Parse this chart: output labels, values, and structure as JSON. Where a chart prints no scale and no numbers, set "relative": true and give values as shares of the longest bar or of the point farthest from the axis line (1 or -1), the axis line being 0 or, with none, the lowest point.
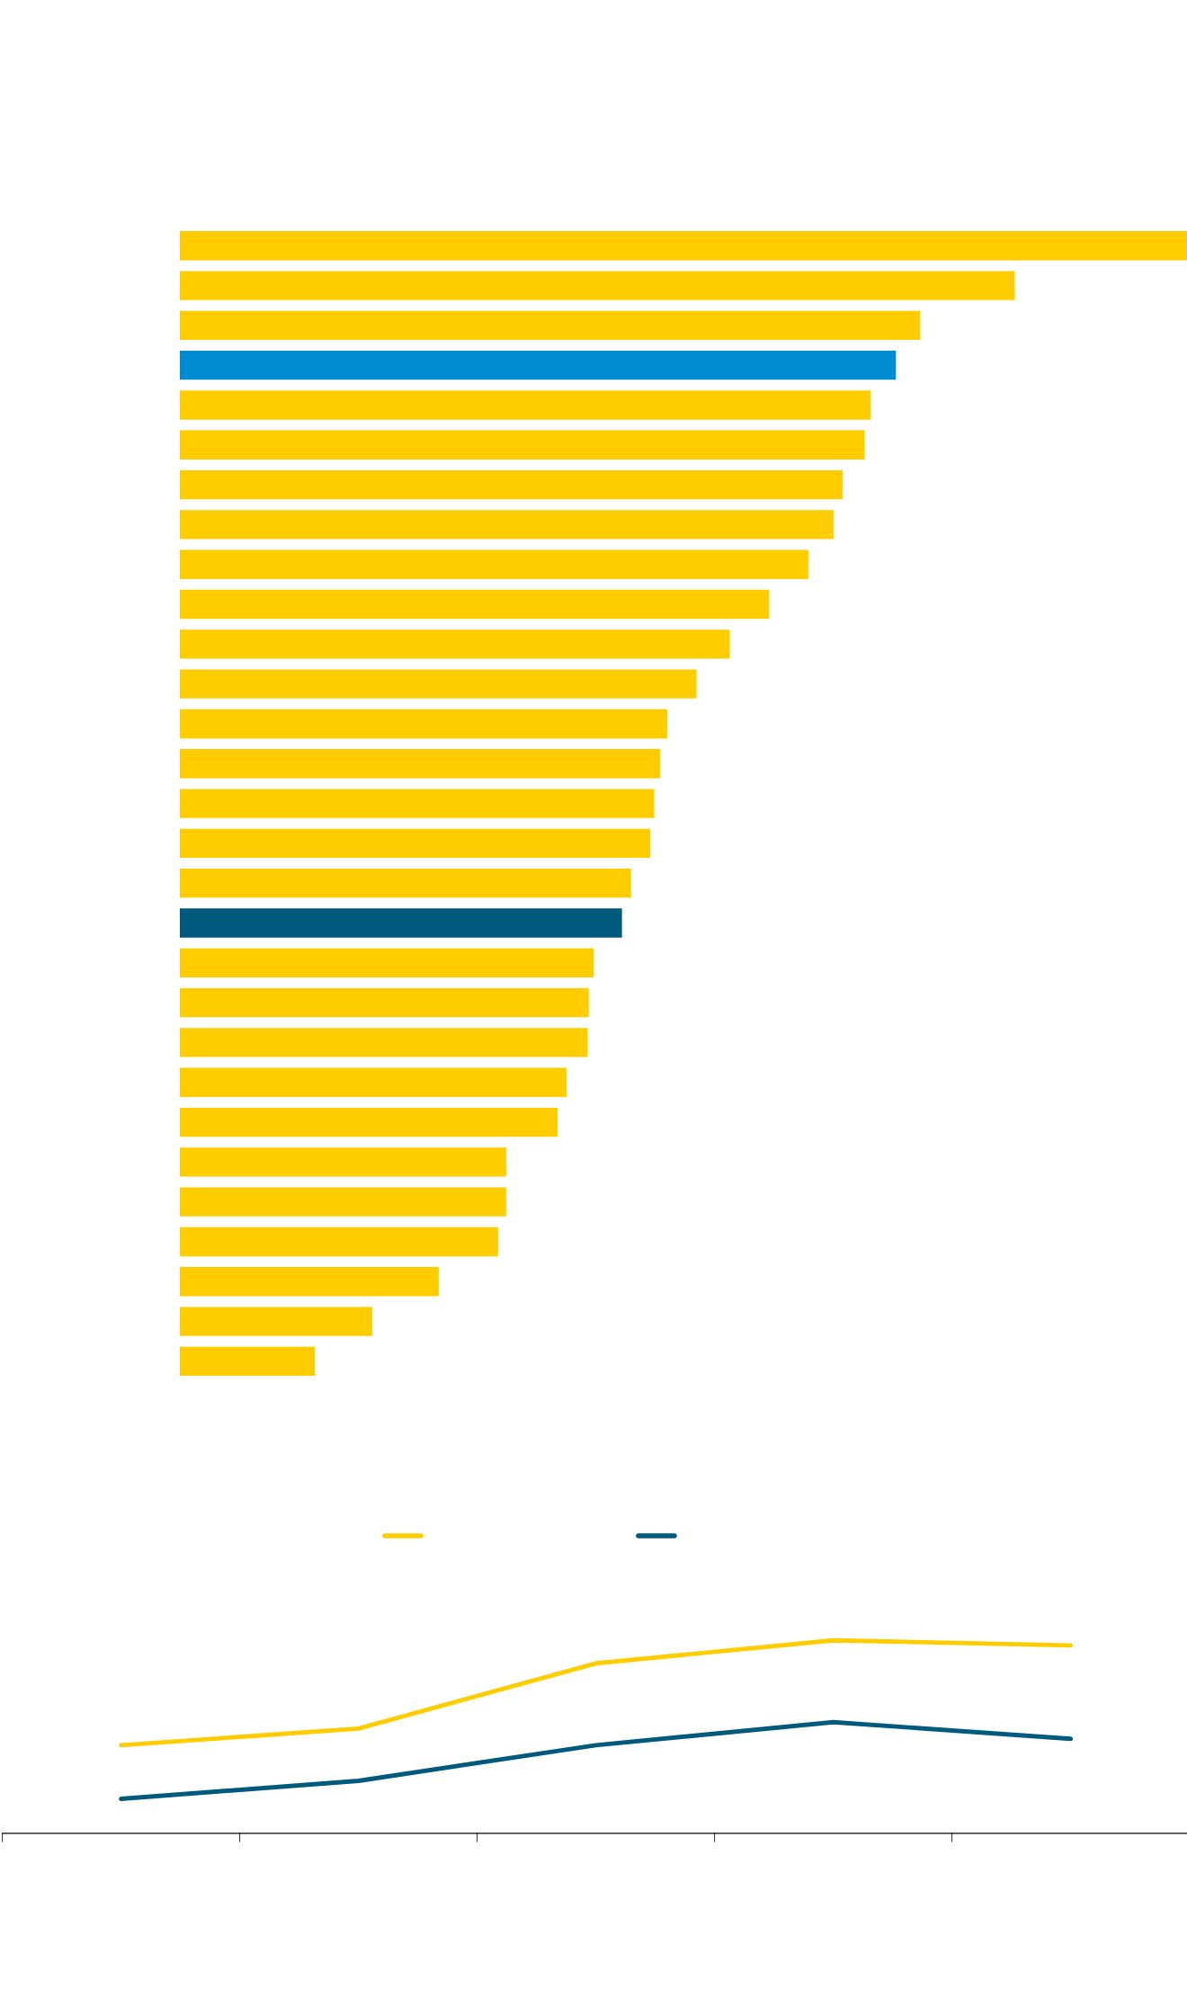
{
  "chart_data": [
    {
      "type": "bar",
      "orientation": "horizontal",
      "relative": true,
      "categories": [
        null,
        null,
        null,
        null,
        null,
        null,
        null,
        null,
        null,
        null,
        null,
        null,
        null,
        null,
        null,
        null,
        null,
        null,
        null,
        null,
        null,
        null,
        null,
        null,
        null,
        null,
        null,
        null,
        null
      ],
      "values": [
        1,
        0.829,
        0.735,
        0.711,
        0.686,
        0.68,
        0.658,
        0.649,
        0.624,
        0.585,
        0.546,
        0.513,
        0.484,
        0.477,
        0.471,
        0.467,
        0.448,
        0.439,
        0.411,
        0.406,
        0.405,
        0.384,
        0.375,
        0.324,
        0.324,
        0.316,
        0.257,
        0.191,
        0.134
      ],
      "colors": [
        "#ffcc00",
        "#ffcc00",
        "#ffcc00",
        "#008ad0",
        "#ffcc00",
        "#ffcc00",
        "#ffcc00",
        "#ffcc00",
        "#ffcc00",
        "#ffcc00",
        "#ffcc00",
        "#ffcc00",
        "#ffcc00",
        "#ffcc00",
        "#ffcc00",
        "#ffcc00",
        "#ffcc00",
        "#005a7d",
        "#ffcc00",
        "#ffcc00",
        "#ffcc00",
        "#ffcc00",
        "#ffcc00",
        "#ffcc00",
        "#ffcc00",
        "#ffcc00",
        "#ffcc00",
        "#ffcc00",
        "#ffcc00"
      ],
      "grid": false
    },
    {
      "type": "line",
      "relative": true,
      "categories": [
        null,
        null,
        null,
        null,
        null
      ],
      "series": [
        {
          "color": "#ffcc00",
          "values": [
            0.457,
            0.543,
            0.881,
            1,
            0.974
          ]
        },
        {
          "color": "#005a7d",
          "values": [
            0.179,
            0.272,
            0.457,
            0.576,
            0.49
          ]
        }
      ],
      "grid": false,
      "marker": "none",
      "line_style": "solid"
    }
  ]
}
